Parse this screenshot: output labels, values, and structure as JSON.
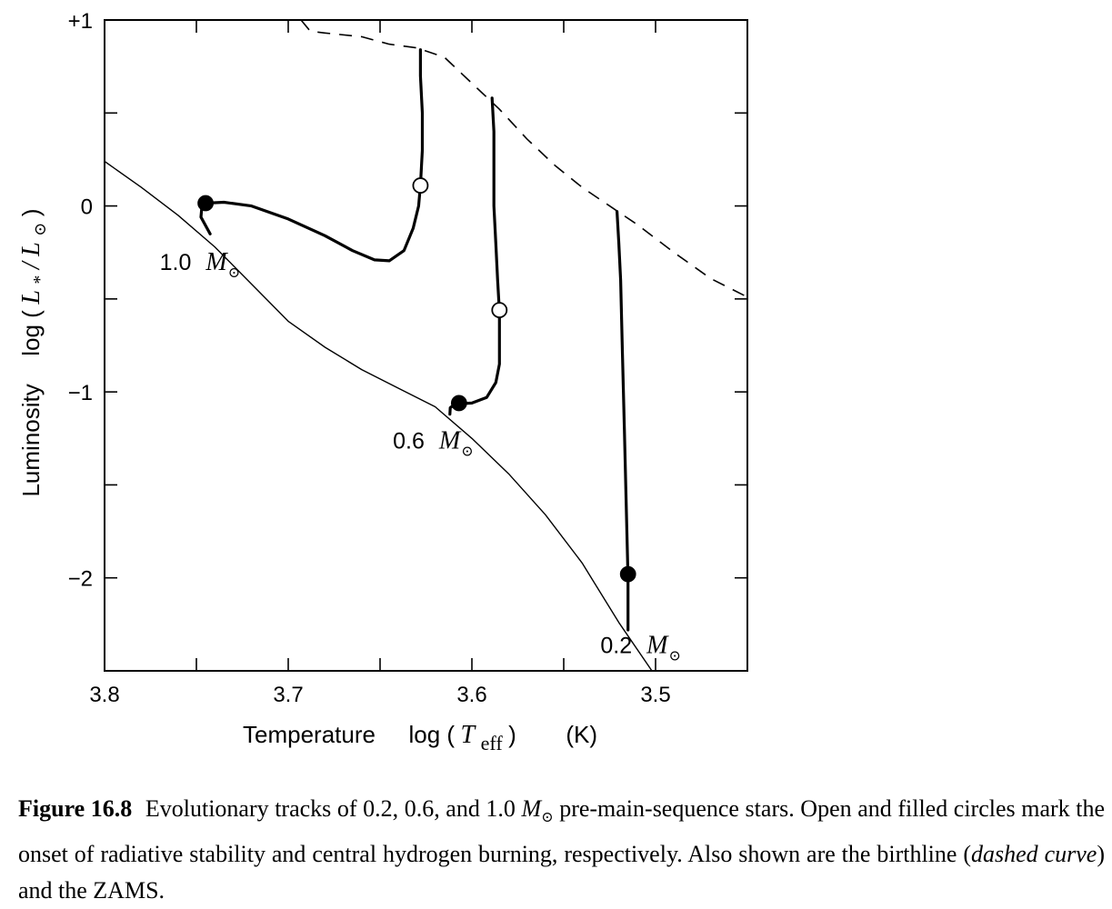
{
  "chart_data": {
    "type": "line",
    "xlabel": {
      "prefix": "Temperature",
      "log_text": "log (",
      "var": "T",
      "sub": "eff",
      "close": ")",
      "unit": "(K)"
    },
    "ylabel": {
      "prefix": "Luminosity",
      "log_text": "log (",
      "num": "L",
      "num_sub": "*",
      "slash": "/",
      "den": "L",
      "den_sub": "⊙",
      "close": ")"
    },
    "xlim": [
      3.8,
      3.45
    ],
    "ylim": [
      -2.5,
      1.0
    ],
    "x_reversed": true,
    "xticks": [
      {
        "v": 3.8,
        "label": "3.8"
      },
      {
        "v": 3.7,
        "label": "3.7"
      },
      {
        "v": 3.6,
        "label": "3.6"
      },
      {
        "v": 3.5,
        "label": "3.5"
      }
    ],
    "yticks": [
      {
        "v": 1,
        "label": "+1"
      },
      {
        "v": 0,
        "label": "0"
      },
      {
        "v": -1,
        "label": "−1"
      },
      {
        "v": -2,
        "label": "−2"
      }
    ],
    "series": [
      {
        "role": "birthline",
        "style": "dashed",
        "points": [
          [
            3.693,
            1.0
          ],
          [
            3.688,
            0.94
          ],
          [
            3.68,
            0.93
          ],
          [
            3.66,
            0.91
          ],
          [
            3.645,
            0.87
          ],
          [
            3.63,
            0.85
          ],
          [
            3.615,
            0.8
          ],
          [
            3.6,
            0.66
          ],
          [
            3.585,
            0.52
          ],
          [
            3.57,
            0.36
          ],
          [
            3.555,
            0.22
          ],
          [
            3.54,
            0.1
          ],
          [
            3.525,
            0.0
          ],
          [
            3.51,
            -0.1
          ],
          [
            3.49,
            -0.25
          ],
          [
            3.47,
            -0.39
          ],
          [
            3.45,
            -0.49
          ]
        ]
      },
      {
        "role": "zams",
        "style": "solid-thin",
        "points": [
          [
            3.8,
            0.24
          ],
          [
            3.78,
            0.1
          ],
          [
            3.76,
            -0.05
          ],
          [
            3.74,
            -0.22
          ],
          [
            3.72,
            -0.42
          ],
          [
            3.7,
            -0.62
          ],
          [
            3.68,
            -0.76
          ],
          [
            3.66,
            -0.88
          ],
          [
            3.64,
            -0.98
          ],
          [
            3.62,
            -1.08
          ],
          [
            3.6,
            -1.25
          ],
          [
            3.58,
            -1.44
          ],
          [
            3.56,
            -1.66
          ],
          [
            3.54,
            -1.92
          ],
          [
            3.52,
            -2.24
          ],
          [
            3.502,
            -2.5
          ]
        ]
      },
      {
        "role": "track",
        "name": "1.0 M⊙",
        "style": "solid-thick",
        "points": [
          [
            3.7425,
            -0.15
          ],
          [
            3.7475,
            -0.06
          ],
          [
            3.747,
            0.0
          ],
          [
            3.745,
            0.015
          ],
          [
            3.735,
            0.02
          ],
          [
            3.72,
            0.0
          ],
          [
            3.7,
            -0.07
          ],
          [
            3.68,
            -0.16
          ],
          [
            3.665,
            -0.24
          ],
          [
            3.653,
            -0.29
          ],
          [
            3.645,
            -0.295
          ],
          [
            3.637,
            -0.24
          ],
          [
            3.632,
            -0.12
          ],
          [
            3.629,
            0.0
          ],
          [
            3.628,
            0.11
          ],
          [
            3.627,
            0.3
          ],
          [
            3.627,
            0.5
          ],
          [
            3.628,
            0.7
          ],
          [
            3.628,
            0.84
          ]
        ]
      },
      {
        "role": "track",
        "name": "0.6 M⊙",
        "style": "solid-thick",
        "points": [
          [
            3.612,
            -1.12
          ],
          [
            3.6118,
            -1.085
          ],
          [
            3.609,
            -1.065
          ],
          [
            3.6,
            -1.06
          ],
          [
            3.592,
            -1.03
          ],
          [
            3.587,
            -0.95
          ],
          [
            3.585,
            -0.85
          ],
          [
            3.585,
            -0.7
          ],
          [
            3.585,
            -0.57
          ],
          [
            3.586,
            -0.4
          ],
          [
            3.587,
            -0.2
          ],
          [
            3.588,
            0.0
          ],
          [
            3.588,
            0.2
          ],
          [
            3.588,
            0.4
          ],
          [
            3.589,
            0.58
          ]
        ]
      },
      {
        "role": "track",
        "name": "0.2 M⊙",
        "style": "solid-thick",
        "points": [
          [
            3.515,
            -2.28
          ],
          [
            3.515,
            -2.0
          ],
          [
            3.516,
            -1.6
          ],
          [
            3.517,
            -1.2
          ],
          [
            3.518,
            -0.8
          ],
          [
            3.519,
            -0.4
          ],
          [
            3.52,
            -0.2
          ],
          [
            3.521,
            -0.03
          ]
        ]
      }
    ],
    "markers": [
      {
        "kind": "filled",
        "x": 3.745,
        "y": 0.015
      },
      {
        "kind": "open",
        "x": 3.628,
        "y": 0.11
      },
      {
        "kind": "filled",
        "x": 3.607,
        "y": -1.06
      },
      {
        "kind": "open",
        "x": 3.585,
        "y": -0.56
      },
      {
        "kind": "filled",
        "x": 3.515,
        "y": -1.98
      }
    ],
    "annotations": [
      {
        "num": "1.0",
        "sym": "M",
        "sub": "⊙",
        "x": 3.77,
        "y": -0.3
      },
      {
        "num": "0.6",
        "sym": "M",
        "sub": "⊙",
        "x": 3.643,
        "y": -1.26
      },
      {
        "num": "0.2",
        "sym": "M",
        "sub": "⊙",
        "x": 3.53,
        "y": -2.36
      }
    ]
  },
  "caption": {
    "label": "Figure 16.8",
    "text_1": "Evolutionary tracks of 0.2, 0.6, and 1.0",
    "sym": "M",
    "sub": "⊙",
    "text_2": "pre-main-sequence stars. Open and filled circles mark the onset of radiative stability and central hydrogen burning, respectively. Also shown are the birthline (",
    "italic": "dashed curve",
    "text_3": ") and the ZAMS."
  }
}
